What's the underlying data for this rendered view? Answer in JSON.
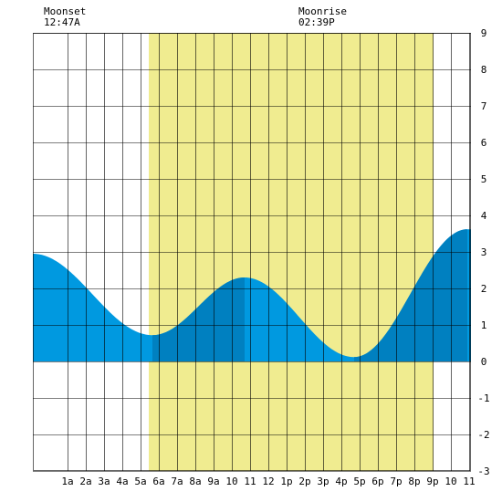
{
  "moon": {
    "moonset": {
      "label": "Moonset",
      "time": "12:47A"
    },
    "moonrise": {
      "label": "Moonrise",
      "time": "02:39P"
    }
  },
  "chart_data": {
    "type": "area",
    "title": "",
    "xlabel": "",
    "ylabel": "",
    "x_unit": "hour of day",
    "xlim": [
      -0.9,
      23.1
    ],
    "ylim": [
      -3,
      9
    ],
    "grid": true,
    "y_ticks": [
      -3,
      -2,
      -1,
      0,
      1,
      2,
      3,
      4,
      5,
      6,
      7,
      8,
      9
    ],
    "x_ticks": [
      {
        "hour": 1,
        "label": "1a"
      },
      {
        "hour": 2,
        "label": "2a"
      },
      {
        "hour": 3,
        "label": "3a"
      },
      {
        "hour": 4,
        "label": "4a"
      },
      {
        "hour": 5,
        "label": "5a"
      },
      {
        "hour": 6,
        "label": "6a"
      },
      {
        "hour": 7,
        "label": "7a"
      },
      {
        "hour": 8,
        "label": "8a"
      },
      {
        "hour": 9,
        "label": "9a"
      },
      {
        "hour": 10,
        "label": "10"
      },
      {
        "hour": 11,
        "label": "11"
      },
      {
        "hour": 12,
        "label": "12"
      },
      {
        "hour": 13,
        "label": "1p"
      },
      {
        "hour": 14,
        "label": "2p"
      },
      {
        "hour": 15,
        "label": "3p"
      },
      {
        "hour": 16,
        "label": "4p"
      },
      {
        "hour": 17,
        "label": "5p"
      },
      {
        "hour": 18,
        "label": "6p"
      },
      {
        "hour": 19,
        "label": "7p"
      },
      {
        "hour": 20,
        "label": "8p"
      },
      {
        "hour": 21,
        "label": "9p"
      },
      {
        "hour": 22,
        "label": "10"
      },
      {
        "hour": 23,
        "label": "11"
      }
    ],
    "daylight": {
      "start_hour": 5.45,
      "end_hour": 21.05
    },
    "tide_extremes": [
      {
        "type": "high",
        "hour": -0.9,
        "height": 2.95
      },
      {
        "type": "low",
        "hour": 5.65,
        "height": 0.72
      },
      {
        "type": "high",
        "hour": 10.7,
        "height": 2.3
      },
      {
        "type": "low",
        "hour": 16.7,
        "height": 0.12
      },
      {
        "type": "high",
        "hour": 22.9,
        "height": 3.62
      }
    ],
    "dark_bands": [
      {
        "start_hour": 5.65,
        "end_hour": 10.7
      },
      {
        "start_hour": 16.7,
        "end_hour": 22.9
      }
    ],
    "colors": {
      "tide": "#0099e0",
      "tide_dark": "#0080c0",
      "daylight": "#f0ec90",
      "grid": "#000000",
      "background": "#ffffff"
    }
  }
}
